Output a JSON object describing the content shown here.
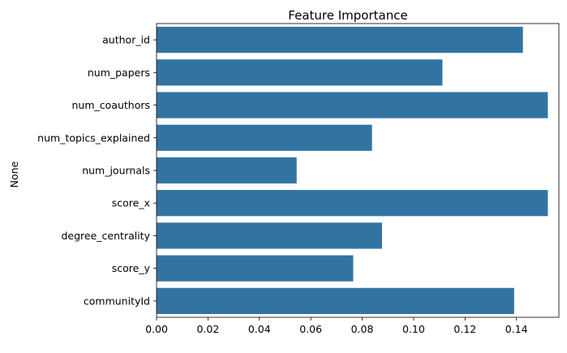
{
  "chart_data": {
    "type": "bar",
    "orientation": "horizontal",
    "title": "Feature Importance",
    "xlabel": "",
    "ylabel": "None",
    "categories": [
      "author_id",
      "num_papers",
      "num_coauthors",
      "num_topics_explained",
      "num_journals",
      "score_x",
      "degree_centrality",
      "score_y",
      "communityId"
    ],
    "values": [
      0.1425,
      0.1112,
      0.1522,
      0.0838,
      0.0545,
      0.1522,
      0.0877,
      0.0765,
      0.1391
    ],
    "xlim": [
      0,
      0.1565
    ],
    "xticks": [
      "0.00",
      "0.02",
      "0.04",
      "0.06",
      "0.08",
      "0.10",
      "0.12",
      "0.14"
    ],
    "bar_color": "#3274a1",
    "grid": false,
    "legend": "none"
  }
}
